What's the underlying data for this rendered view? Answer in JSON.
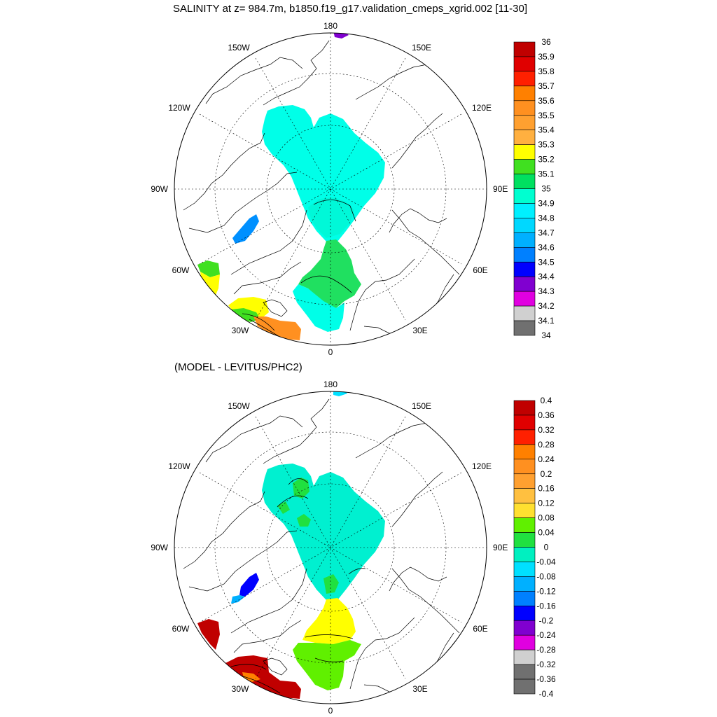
{
  "titles": {
    "top": "SALINITY at z= 984.7m, b1850.f19_g17.validation_cmeps_xgrid.002 [11-30]",
    "bottom": "(MODEL - LEVITUS/PHC2)"
  },
  "longitude_labels": {
    "lon_0": "0",
    "lon_30E": "30E",
    "lon_60E": "60E",
    "lon_90E": "90E",
    "lon_120E": "120E",
    "lon_150E": "150E",
    "lon_180": "180",
    "lon_150W": "150W",
    "lon_120W": "120W",
    "lon_90W": "90W",
    "lon_60W": "60W",
    "lon_30W": "30W"
  },
  "colorbars": {
    "salinity": {
      "labels": [
        "36",
        "35.9",
        "35.8",
        "35.7",
        "35.6",
        "35.5",
        "35.4",
        "35.3",
        "35.2",
        "35.1",
        "35",
        "34.9",
        "34.8",
        "34.7",
        "34.6",
        "34.5",
        "34.4",
        "34.3",
        "34.2",
        "34.1",
        "34"
      ],
      "colors": [
        "#c00000",
        "#e00000",
        "#ff2000",
        "#ff8000",
        "#ff9020",
        "#ffa030",
        "#ffb040",
        "#ffff00",
        "#40e020",
        "#00e060",
        "#00ffd0",
        "#00f0ff",
        "#00d8ff",
        "#00b0ff",
        "#0080ff",
        "#0000ff",
        "#8000d0",
        "#e000e0",
        "#d0d0d0",
        "#707070"
      ]
    },
    "difference": {
      "labels": [
        "0.4",
        "0.36",
        "0.32",
        "0.28",
        "0.24",
        "0.2",
        "0.16",
        "0.12",
        "0.08",
        "0.04",
        "0",
        "-0.04",
        "-0.08",
        "-0.12",
        "-0.16",
        "-0.2",
        "-0.24",
        "-0.28",
        "-0.32",
        "-0.36",
        "-0.4"
      ],
      "colors": [
        "#c00000",
        "#e00000",
        "#ff2000",
        "#ff8000",
        "#ff9020",
        "#ffa030",
        "#ffc040",
        "#ffe030",
        "#60f000",
        "#20e040",
        "#00f0c0",
        "#00e0ff",
        "#00b0ff",
        "#0080ff",
        "#0000ff",
        "#8000d0",
        "#e000e0",
        "#d0d0d0",
        "#707070",
        "#707070"
      ]
    }
  },
  "fields": {
    "top": {
      "arctic": "#00ffe8",
      "fram_center": "#00f8d8",
      "nordic": "#20e060",
      "labrador": "#0090ff",
      "subpolar_yellow": "#ffff00",
      "subpolar_green": "#40e020",
      "subpolar_orange": "#ff9020",
      "beringia": "#8000d0"
    },
    "bottom": {
      "arctic": "#00f0d0",
      "green_patches": "#20e040",
      "nordic_yellow": "#ffff00",
      "nordic_green": "#60f000",
      "labrador_blue": "#0000ff",
      "labrador_cyan": "#00b0ff",
      "subpolar_red": "#c00000",
      "subpolar_orange": "#ff8000",
      "beringia": "#00e0ff"
    }
  }
}
